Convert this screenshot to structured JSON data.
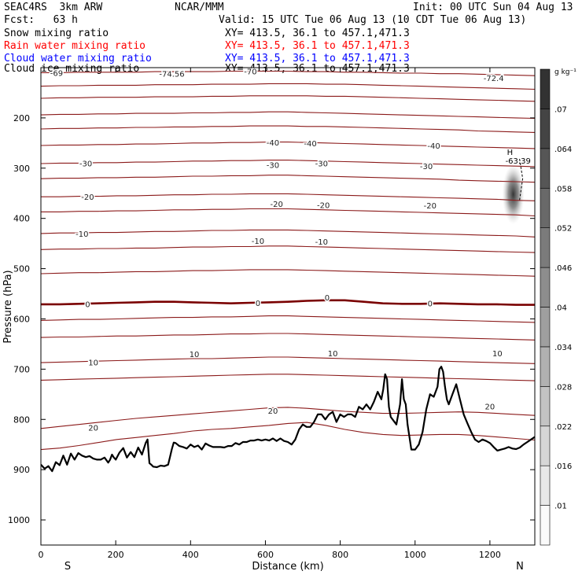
{
  "header": {
    "model": "SEAC4RS  3km ARW",
    "center": "NCAR/MMM",
    "init": "Init: 00 UTC Sun 04 Aug 13",
    "fcst": "Fcst:   63 h",
    "valid": "Valid: 15 UTC Tue 06 Aug 13 (10 CDT Tue 06 Aug 13)"
  },
  "fields": [
    {
      "name": "Snow mixing ratio",
      "xy": "XY= 413.5, 36.1 to 457.1,471.3",
      "color": "#000000"
    },
    {
      "name": "Rain water mixing ratio",
      "xy": "XY= 413.5, 36.1 to 457.1,471.3",
      "color": "#ff0000"
    },
    {
      "name": "Cloud water mixing ratio",
      "xy": "XY= 413.5, 36.1 to 457.1,471.3",
      "color": "#0000ff"
    },
    {
      "name": "Cloud ice mixing ratio",
      "xy": "XY= 413.5, 36.1 to 457.1,471.3",
      "color": "#000000"
    }
  ],
  "colors": {
    "isotherm": "#8b1a1a",
    "freezing_level": "#7a0000",
    "terrain": "#000000",
    "axis": "#000000"
  },
  "chart_data": {
    "type": "cross-section",
    "xlabel": "Distance (km)",
    "ylabel": "Pressure (hPa)",
    "xlim": [
      0,
      1320
    ],
    "ylim": [
      1050,
      100
    ],
    "x_ticks": [
      0,
      200,
      400,
      600,
      800,
      1000,
      1200
    ],
    "y_ticks": [
      200,
      300,
      400,
      500,
      600,
      700,
      800,
      900,
      1000
    ],
    "end_labels": {
      "left": "S",
      "right": "N"
    },
    "colorbar": {
      "units": "g kg⁻¹",
      "levels": [
        ".01",
        ".016",
        ".022",
        ".028",
        ".034",
        ".04",
        ".046",
        ".052",
        ".058",
        ".064",
        ".07"
      ]
    },
    "isotherms": [
      {
        "t": -70,
        "p": [
          110,
          110,
          109,
          109,
          109,
          109,
          108,
          108,
          108,
          108,
          107,
          107,
          107,
          107,
          108,
          108,
          109,
          109,
          110,
          111,
          111,
          112,
          112,
          113,
          114,
          115,
          116
        ]
      },
      {
        "t": null,
        "p": [
          137,
          136,
          136,
          135,
          135,
          135,
          134,
          134,
          134,
          133,
          133,
          133,
          132,
          132,
          132,
          133,
          133,
          134,
          135,
          136,
          137,
          138,
          139,
          140,
          141,
          142,
          143
        ]
      },
      {
        "t": null,
        "p": [
          161,
          160,
          160,
          159,
          159,
          159,
          158,
          158,
          158,
          157,
          157,
          156,
          156,
          156,
          156,
          157,
          157,
          158,
          159,
          160,
          161,
          162,
          163,
          164,
          165,
          166,
          167
        ]
      },
      {
        "t": null,
        "p": [
          194,
          193,
          193,
          192,
          192,
          191,
          191,
          191,
          190,
          190,
          189,
          189,
          188,
          188,
          189,
          190,
          191,
          192,
          193,
          194,
          195,
          196,
          197,
          198,
          199,
          200,
          201
        ]
      },
      {
        "t": null,
        "p": [
          222,
          221,
          221,
          220,
          220,
          219,
          219,
          218,
          218,
          217,
          217,
          216,
          216,
          216,
          217,
          217,
          218,
          219,
          220,
          221,
          222,
          223,
          224,
          226,
          227,
          228,
          229
        ]
      },
      {
        "t": -40,
        "p": [
          255,
          254,
          254,
          253,
          253,
          252,
          252,
          251,
          250,
          250,
          249,
          249,
          248,
          248,
          249,
          250,
          251,
          252,
          253,
          254,
          255,
          256,
          257,
          258,
          259,
          260,
          261
        ]
      },
      {
        "t": -30,
        "p": [
          291,
          290,
          290,
          289,
          289,
          288,
          288,
          287,
          286,
          286,
          285,
          285,
          284,
          284,
          285,
          286,
          287,
          288,
          289,
          290,
          291,
          292,
          293,
          294,
          295,
          296,
          297
        ]
      },
      {
        "t": null,
        "p": [
          321,
          320,
          320,
          319,
          319,
          318,
          318,
          317,
          316,
          316,
          315,
          315,
          314,
          314,
          315,
          316,
          317,
          318,
          319,
          320,
          321,
          322,
          324,
          325,
          326,
          327,
          328
        ]
      },
      {
        "t": -20,
        "p": [
          357,
          357,
          356,
          356,
          355,
          355,
          354,
          353,
          353,
          352,
          352,
          351,
          351,
          351,
          352,
          353,
          354,
          355,
          356,
          357,
          358,
          359,
          360,
          361,
          362,
          364,
          365
        ]
      },
      {
        "t": null,
        "p": [
          387,
          387,
          386,
          386,
          385,
          385,
          384,
          383,
          383,
          382,
          382,
          381,
          381,
          381,
          382,
          383,
          384,
          385,
          386,
          387,
          388,
          389,
          390,
          391,
          392,
          393,
          395
        ]
      },
      {
        "t": -10,
        "p": [
          430,
          429,
          429,
          428,
          428,
          427,
          426,
          426,
          425,
          424,
          424,
          423,
          423,
          423,
          424,
          425,
          426,
          427,
          428,
          429,
          430,
          431,
          432,
          433,
          434,
          435,
          437
        ]
      },
      {
        "t": null,
        "p": [
          462,
          461,
          461,
          460,
          460,
          459,
          459,
          458,
          457,
          457,
          456,
          456,
          455,
          455,
          456,
          457,
          458,
          459,
          460,
          461,
          462,
          463,
          464,
          465,
          466,
          467,
          468
        ]
      },
      {
        "t": null,
        "p": [
          510,
          509,
          508,
          508,
          507,
          506,
          506,
          505,
          504,
          504,
          503,
          502,
          502,
          502,
          503,
          504,
          505,
          506,
          507,
          508,
          509,
          510,
          511,
          512,
          513,
          514,
          515
        ]
      },
      {
        "t": 0,
        "p": [
          571,
          571,
          570,
          569,
          568,
          567,
          566,
          566,
          567,
          568,
          569,
          568,
          567,
          566,
          564,
          563,
          563,
          566,
          569,
          570,
          570,
          569,
          570,
          571,
          571,
          572,
          572
        ]
      },
      {
        "t": null,
        "p": [
          603,
          602,
          601,
          601,
          600,
          599,
          598,
          597,
          597,
          596,
          596,
          595,
          594,
          594,
          595,
          596,
          597,
          598,
          599,
          600,
          601,
          602,
          603,
          604,
          605,
          606,
          607
        ]
      },
      {
        "t": null,
        "p": [
          637,
          636,
          636,
          635,
          634,
          634,
          633,
          632,
          632,
          631,
          630,
          630,
          629,
          629,
          630,
          631,
          632,
          633,
          634,
          635,
          636,
          637,
          638,
          639,
          640,
          641,
          642
        ]
      },
      {
        "t": 10,
        "p": [
          687,
          686,
          685,
          684,
          683,
          682,
          681,
          680,
          679,
          679,
          678,
          677,
          676,
          676,
          677,
          678,
          679,
          680,
          681,
          682,
          683,
          684,
          685,
          686,
          687,
          688,
          689
        ]
      },
      {
        "t": null,
        "p": [
          722,
          721,
          720,
          719,
          718,
          717,
          716,
          715,
          714,
          713,
          712,
          711,
          710,
          710,
          711,
          712,
          713,
          714,
          715,
          716,
          717,
          718,
          719,
          720,
          721,
          722,
          723
        ]
      },
      {
        "t": 20,
        "p": [
          818,
          814,
          810,
          806,
          802,
          798,
          795,
          792,
          789,
          786,
          783,
          780,
          777,
          776,
          778,
          781,
          784,
          786,
          788,
          788,
          787,
          786,
          785,
          786,
          788,
          790,
          792
        ]
      },
      {
        "t": null,
        "p": [
          860,
          857,
          852,
          846,
          840,
          836,
          832,
          828,
          823,
          820,
          818,
          815,
          812,
          808,
          806,
          812,
          820,
          826,
          830,
          832,
          831,
          830,
          830,
          832,
          835,
          838,
          841
        ]
      }
    ],
    "isotherm_labels": [
      {
        "text": "-69",
        "x": 42,
        "p": 110
      },
      {
        "text": "-74.56",
        "x": 350,
        "p": 112
      },
      {
        "text": "-70",
        "x": 560,
        "p": 107
      },
      {
        "text": "-72.4",
        "x": 1210,
        "p": 120
      },
      {
        "text": "-40",
        "x": 620,
        "p": 249
      },
      {
        "text": "-40",
        "x": 720,
        "p": 250
      },
      {
        "text": "-40",
        "x": 1050,
        "p": 255
      },
      {
        "text": "-30",
        "x": 120,
        "p": 290
      },
      {
        "text": "-30",
        "x": 620,
        "p": 293
      },
      {
        "text": "-30",
        "x": 750,
        "p": 290
      },
      {
        "text": "-30",
        "x": 1030,
        "p": 296
      },
      {
        "text": "-20",
        "x": 125,
        "p": 357
      },
      {
        "text": "-20",
        "x": 630,
        "p": 371
      },
      {
        "text": "-20",
        "x": 755,
        "p": 373
      },
      {
        "text": "-20",
        "x": 1040,
        "p": 374
      },
      {
        "text": "-10",
        "x": 110,
        "p": 430
      },
      {
        "text": "-10",
        "x": 580,
        "p": 444
      },
      {
        "text": "-10",
        "x": 750,
        "p": 446
      },
      {
        "text": "0",
        "x": 125,
        "p": 570
      },
      {
        "text": "0",
        "x": 580,
        "p": 568
      },
      {
        "text": "0",
        "x": 765,
        "p": 557
      },
      {
        "text": "0",
        "x": 1040,
        "p": 569
      },
      {
        "text": "10",
        "x": 140,
        "p": 686
      },
      {
        "text": "10",
        "x": 410,
        "p": 670
      },
      {
        "text": "10",
        "x": 780,
        "p": 668
      },
      {
        "text": "10",
        "x": 1220,
        "p": 668
      },
      {
        "text": "20",
        "x": 140,
        "p": 816
      },
      {
        "text": "20",
        "x": 620,
        "p": 782
      },
      {
        "text": "20",
        "x": 1200,
        "p": 774
      }
    ],
    "terrain": {
      "x": [
        0,
        10,
        20,
        30,
        40,
        50,
        60,
        70,
        80,
        90,
        100,
        110,
        120,
        130,
        140,
        150,
        160,
        170,
        180,
        185,
        190,
        195,
        200,
        210,
        220,
        230,
        240,
        250,
        260,
        270,
        280,
        285,
        290,
        295,
        300,
        310,
        320,
        330,
        340,
        345,
        350,
        355,
        360,
        370,
        380,
        390,
        400,
        410,
        420,
        430,
        440,
        450,
        460,
        470,
        480,
        490,
        500,
        510,
        520,
        530,
        540,
        550,
        560,
        570,
        580,
        590,
        600,
        610,
        620,
        630,
        640,
        650,
        660,
        670,
        680,
        690,
        700,
        710,
        720,
        730,
        740,
        750,
        760,
        770,
        780,
        790,
        800,
        810,
        820,
        830,
        840,
        850,
        860,
        870,
        880,
        890,
        900,
        910,
        915,
        920,
        925,
        930,
        935,
        940,
        950,
        960,
        965,
        970,
        975,
        980,
        985,
        990,
        1000,
        1010,
        1020,
        1030,
        1040,
        1050,
        1060,
        1065,
        1070,
        1075,
        1080,
        1085,
        1090,
        1100,
        1110,
        1120,
        1130,
        1140,
        1150,
        1160,
        1170,
        1180,
        1190,
        1200,
        1210,
        1220,
        1230,
        1240,
        1250,
        1260,
        1270,
        1280,
        1290,
        1300,
        1310,
        1320
      ],
      "p": [
        890,
        898,
        893,
        903,
        885,
        891,
        872,
        890,
        868,
        880,
        867,
        872,
        875,
        873,
        878,
        880,
        880,
        876,
        886,
        880,
        870,
        876,
        880,
        866,
        857,
        876,
        865,
        875,
        856,
        870,
        847,
        840,
        887,
        890,
        894,
        895,
        892,
        893,
        890,
        875,
        859,
        846,
        847,
        853,
        855,
        858,
        850,
        855,
        852,
        860,
        848,
        852,
        855,
        855,
        855,
        856,
        853,
        853,
        847,
        850,
        845,
        845,
        842,
        842,
        840,
        842,
        840,
        842,
        838,
        843,
        838,
        843,
        845,
        850,
        840,
        820,
        810,
        815,
        815,
        805,
        790,
        790,
        800,
        790,
        785,
        805,
        790,
        795,
        790,
        790,
        795,
        775,
        780,
        770,
        780,
        765,
        745,
        760,
        740,
        710,
        720,
        775,
        795,
        800,
        810,
        770,
        720,
        760,
        770,
        810,
        835,
        860,
        860,
        850,
        825,
        780,
        750,
        755,
        735,
        700,
        695,
        705,
        735,
        760,
        770,
        750,
        730,
        760,
        790,
        808,
        825,
        840,
        845,
        840,
        843,
        847,
        855,
        862,
        860,
        858,
        855,
        858,
        859,
        856,
        850,
        845,
        840,
        835
      ],
      "x_max": 1320
    },
    "cloud_feature": {
      "label_h": "H",
      "label_value": "-63.39",
      "x": 1275,
      "p": 352
    }
  }
}
